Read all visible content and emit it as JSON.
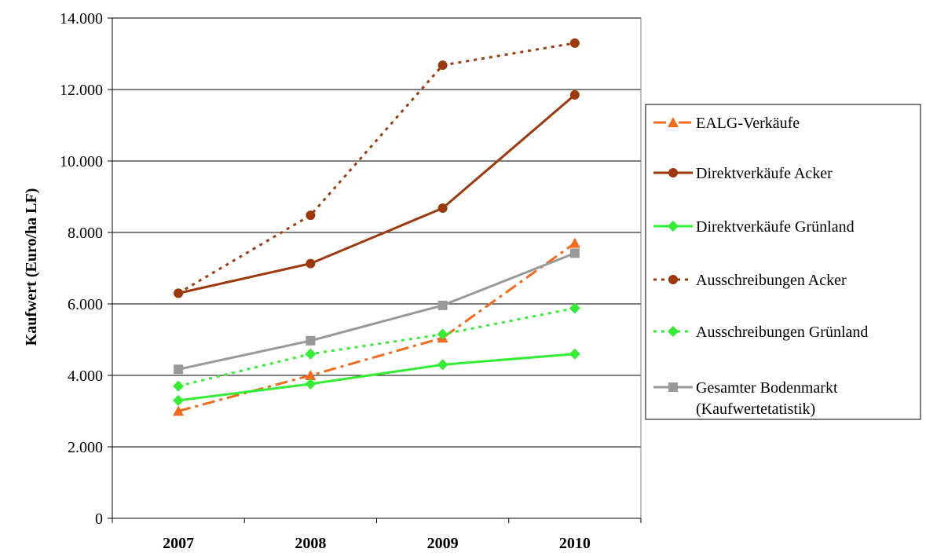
{
  "chart_data": {
    "type": "line",
    "categories": [
      "2007",
      "2008",
      "2009",
      "2010"
    ],
    "ylabel": "Kaufwert (Euro/ha LF)",
    "ylim": [
      0,
      14000
    ],
    "yticks": [
      0,
      2000,
      4000,
      6000,
      8000,
      10000,
      12000,
      14000
    ],
    "ytick_labels": [
      "0",
      "2.000",
      "4.000",
      "6.000",
      "8.000",
      "10.000",
      "12.000",
      "14.000"
    ],
    "grid": true,
    "legend_position": "right",
    "series": [
      {
        "name": "EALG-Verkäufe",
        "values": [
          3000,
          4000,
          5050,
          7700
        ],
        "color": "#f26a1b",
        "dash": "dash-dot",
        "marker": "triangle"
      },
      {
        "name": "Direktverkäufe Acker",
        "values": [
          6300,
          7130,
          8680,
          11850
        ],
        "color": "#9c3a0e",
        "dash": "solid",
        "marker": "circle"
      },
      {
        "name": "Direktverkäufe Grünland",
        "values": [
          3300,
          3760,
          4300,
          4600
        ],
        "color": "#33ee33",
        "dash": "solid",
        "marker": "diamond"
      },
      {
        "name": "Ausschreibungen Acker",
        "values": [
          6300,
          8480,
          12680,
          13300
        ],
        "color": "#9c3a0e",
        "dash": "dotted",
        "marker": "circle"
      },
      {
        "name": "Ausschreibungen Grünland",
        "values": [
          3700,
          4600,
          5150,
          5880
        ],
        "color": "#33ee33",
        "dash": "dotted",
        "marker": "diamond"
      },
      {
        "name": "Gesamter Bodenmarkt (Kaufwertetatistik)",
        "name_lines": [
          "Gesamter Bodenmarkt",
          "(Kaufwertetatistik)"
        ],
        "values": [
          4170,
          4970,
          5960,
          7420
        ],
        "color": "#999999",
        "dash": "solid",
        "marker": "square"
      }
    ]
  }
}
